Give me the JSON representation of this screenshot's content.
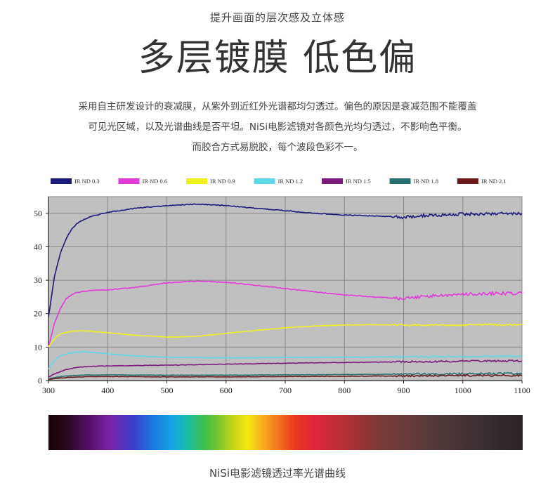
{
  "header": {
    "subtitle": "提升画面的层次感及立体感",
    "headline": "多层镀膜 低色偏"
  },
  "intro": {
    "line1": "采用自主研发设计的衰减膜，从紫外到近红外光谱都均匀透过。偏色的原因是衰减范围不能覆盖",
    "line2": "可见光区域，以及光谱曲线是否平坦。NiSi电影滤镜对各颜色光均匀透过，不影响色平衡。",
    "line3": "而胶合方式易脱胶，每个波段色彩不一。"
  },
  "caption": "NiSi电影滤镜透过率光谱曲线",
  "chart_data": {
    "type": "line",
    "title": "",
    "xlabel": "",
    "ylabel": "",
    "xlim": [
      300,
      1100
    ],
    "ylim": [
      0,
      55
    ],
    "xticks": [
      300,
      400,
      500,
      600,
      700,
      800,
      900,
      1000,
      1100
    ],
    "yticks": [
      0,
      10,
      20,
      30,
      40,
      50
    ],
    "grid": true,
    "legend_position": "top",
    "plot_background": "#c0c0c0",
    "series": [
      {
        "name": "IR ND 0.3",
        "color": "#1a1a7a",
        "x": [
          300,
          310,
          320,
          330,
          340,
          350,
          370,
          400,
          450,
          500,
          550,
          600,
          650,
          700,
          750,
          800,
          850,
          880,
          900,
          930,
          1000,
          1050,
          1100
        ],
        "y": [
          19,
          31,
          38,
          42.5,
          45.5,
          47.2,
          49,
          50.3,
          51.6,
          52.3,
          52.8,
          52.3,
          51.5,
          50.8,
          50,
          49.5,
          49.2,
          49,
          48.8,
          49.3,
          49.8,
          49.9,
          50
        ]
      },
      {
        "name": "IR ND 0.6",
        "color": "#e03ad8",
        "x": [
          300,
          310,
          320,
          330,
          345,
          370,
          400,
          450,
          500,
          550,
          600,
          650,
          700,
          750,
          800,
          850,
          900,
          950,
          1000,
          1050,
          1100
        ],
        "y": [
          10,
          17,
          21.5,
          24.5,
          26.3,
          26.9,
          27.1,
          27.9,
          29.2,
          29.8,
          29.4,
          28.5,
          27.5,
          26.5,
          25.6,
          25,
          24.5,
          25.4,
          25.8,
          26,
          26.1
        ]
      },
      {
        "name": "IR ND 0.9",
        "color": "#f0f020",
        "x": [
          300,
          310,
          320,
          340,
          360,
          400,
          450,
          500,
          550,
          600,
          650,
          700,
          750,
          800,
          850,
          900,
          950,
          1000,
          1050,
          1100
        ],
        "y": [
          10,
          12.5,
          14,
          14.8,
          14.9,
          14.3,
          13.5,
          13,
          13.2,
          14.1,
          15,
          15.8,
          16.3,
          16.6,
          16.7,
          16.6,
          16.6,
          16.6,
          16.7,
          16.7
        ]
      },
      {
        "name": "IR ND 1.2",
        "color": "#5fd8e8",
        "x": [
          300,
          310,
          320,
          340,
          360,
          400,
          450,
          500,
          600,
          700,
          800,
          900,
          1000,
          1100
        ],
        "y": [
          3.5,
          6,
          7.5,
          8.4,
          8.6,
          8,
          7.3,
          7,
          6.8,
          6.9,
          7,
          7.1,
          7.2,
          7.3
        ]
      },
      {
        "name": "IR ND 1.5",
        "color": "#7a1a7a",
        "x": [
          300,
          310,
          330,
          350,
          380,
          400,
          450,
          500,
          600,
          700,
          800,
          900,
          1000,
          1100
        ],
        "y": [
          1,
          2,
          3.3,
          4,
          4.3,
          4.4,
          4.5,
          4.6,
          4.9,
          5.2,
          5.4,
          5.6,
          5.8,
          5.9
        ]
      },
      {
        "name": "IR ND 1.8",
        "color": "#2a7070",
        "x": [
          300,
          320,
          350,
          400,
          500,
          600,
          700,
          800,
          900,
          1000,
          1100
        ],
        "y": [
          0.5,
          1.2,
          1.6,
          1.7,
          1.6,
          1.6,
          1.7,
          1.8,
          1.9,
          2.0,
          2.1
        ]
      },
      {
        "name": "IR ND 2.1",
        "color": "#6a1a1a",
        "x": [
          300,
          320,
          350,
          400,
          500,
          600,
          700,
          800,
          900,
          1000,
          1100
        ],
        "y": [
          0.3,
          0.8,
          1.1,
          1.2,
          1.1,
          1.1,
          1.2,
          1.3,
          1.4,
          1.5,
          1.5
        ]
      }
    ]
  }
}
